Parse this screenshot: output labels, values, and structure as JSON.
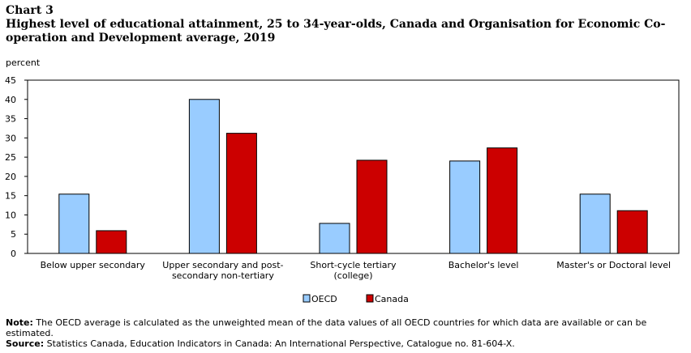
{
  "header": {
    "chart_label": "Chart 3",
    "title": "Highest level of educational attainment, 25 to 34-year-olds, Canada and Organisation for Economic Co-operation and Development average, 2019"
  },
  "chart_data": {
    "type": "bar",
    "ylabel": "percent",
    "ylim": [
      0,
      45
    ],
    "yticks": [
      0,
      5,
      10,
      15,
      20,
      25,
      30,
      35,
      40,
      45
    ],
    "grid": false,
    "legend_position": "bottom-center",
    "categories": [
      [
        "Below upper secondary"
      ],
      [
        "Upper secondary and post-",
        "secondary non-tertiary"
      ],
      [
        "Short-cycle tertiary",
        "(college)"
      ],
      [
        "Bachelor's level"
      ],
      [
        "Master's or Doctoral level"
      ]
    ],
    "series": [
      {
        "name": "OECD",
        "color": "#99ccff",
        "values": [
          15.4,
          40.0,
          7.8,
          24.0,
          15.4
        ]
      },
      {
        "name": "Canada",
        "color": "#cc0000",
        "values": [
          5.9,
          31.2,
          24.2,
          27.4,
          11.1
        ]
      }
    ]
  },
  "notes": {
    "note_label": "Note:",
    "note_text": " The OECD average is calculated as the unweighted mean of the data values of all OECD countries for which data are available or can be estimated.",
    "source_label": "Source:",
    "source_text": " Statistics Canada, Education Indicators in Canada: An International Perspective, Catalogue no. 81-604-X."
  }
}
